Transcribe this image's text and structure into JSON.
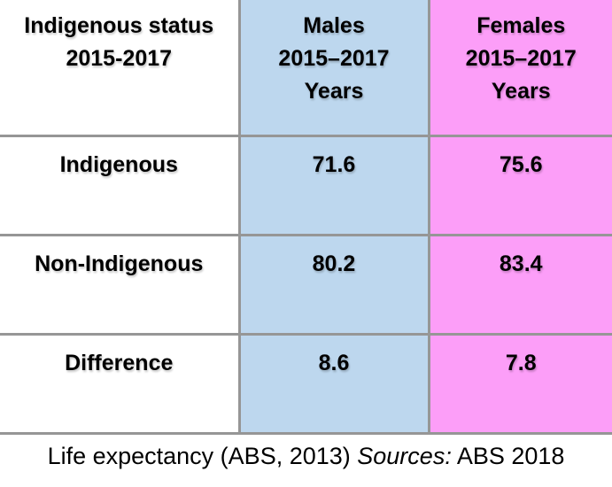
{
  "colors": {
    "males_bg": "#BDD7EE",
    "females_bg": "#FC9EF8",
    "border": "#969696",
    "text": "#000000",
    "page_bg": "#FFFFFF"
  },
  "table": {
    "header": [
      {
        "lines": [
          "Indigenous status",
          "2015-2017"
        ]
      },
      {
        "lines": [
          "Males",
          "2015–2017",
          "Years"
        ]
      },
      {
        "lines": [
          "Females",
          "2015–2017",
          "Years"
        ]
      }
    ],
    "rows": [
      {
        "label": "Indigenous",
        "males": "71.6",
        "females": "75.6"
      },
      {
        "label": "Non-Indigenous",
        "males": "80.2",
        "females": "83.4"
      },
      {
        "label": "Difference",
        "males": "8.6",
        "females": "7.8"
      }
    ]
  },
  "caption": {
    "prefix": "Life expectancy (ABS, 2013) ",
    "sources_label": "Sources:",
    "suffix": " ABS 2018"
  },
  "chart_data": {
    "type": "table",
    "title": "Life expectancy (ABS, 2013)",
    "columns": [
      "Indigenous status 2015-2017",
      "Males 2015–2017 Years",
      "Females 2015–2017 Years"
    ],
    "rows": [
      [
        "Indigenous",
        71.6,
        75.6
      ],
      [
        "Non-Indigenous",
        80.2,
        83.4
      ],
      [
        "Difference",
        8.6,
        7.8
      ]
    ],
    "units": "Years",
    "source_note": "Sources: ABS 2018"
  }
}
